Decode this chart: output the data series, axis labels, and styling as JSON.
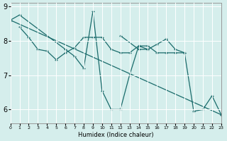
{
  "xlabel": "Humidex (Indice chaleur)",
  "bg_color": "#d5eeec",
  "grid_color": "#ffffff",
  "line_color": "#1a6b6b",
  "xlim": [
    0,
    23
  ],
  "ylim": [
    5.6,
    9.1
  ],
  "yticks": [
    6,
    7,
    8,
    9
  ],
  "xtick_labels": [
    "0",
    "1",
    "2",
    "3",
    "4",
    "5",
    "6",
    "7",
    "8",
    "9",
    "10",
    "11",
    "12",
    "13",
    "14",
    "15",
    "16",
    "17",
    "18",
    "19",
    "20",
    "21",
    "22",
    "23"
  ],
  "series": [
    {
      "x": [
        0,
        23
      ],
      "y": [
        8.6,
        5.85
      ]
    },
    {
      "x": [
        1,
        2,
        3,
        4,
        5,
        6,
        7,
        8,
        9,
        10,
        11,
        12,
        13,
        14,
        15,
        16,
        17,
        18,
        19
      ],
      "y": [
        8.4,
        8.1,
        7.75,
        7.7,
        7.45,
        7.65,
        7.8,
        8.1,
        8.1,
        8.1,
        7.75,
        7.65,
        7.65,
        7.85,
        7.85,
        7.65,
        7.65,
        7.65,
        7.65
      ]
    },
    {
      "x": [
        0,
        1,
        6,
        7,
        8,
        9,
        10,
        11,
        12,
        13,
        14,
        15
      ],
      "y": [
        8.6,
        8.75,
        7.75,
        7.55,
        7.2,
        8.85,
        6.55,
        6.0,
        6.0,
        7.0,
        7.85,
        7.75
      ]
    },
    {
      "x": [
        12,
        14,
        15,
        16,
        17,
        18,
        19,
        20,
        21,
        22,
        23
      ],
      "y": [
        8.15,
        7.75,
        7.75,
        7.9,
        8.05,
        7.75,
        7.65,
        5.95,
        6.0,
        6.4,
        5.85
      ]
    }
  ]
}
